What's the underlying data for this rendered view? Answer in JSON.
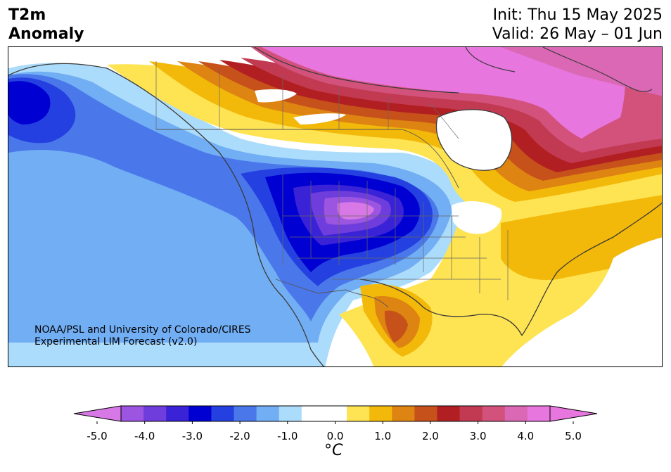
{
  "header": {
    "title_line1": "T2m",
    "title_line2": "Anomaly",
    "init_text": "Init: Thu 15 May 2025",
    "valid_text": "Valid: 26 May – 01 Jun"
  },
  "credit": {
    "line1": "NOAA/PSL and University of Colorado/CIRES",
    "line2": "Experimental LIM Forecast (v2.0)"
  },
  "colorbar": {
    "unit": "°C",
    "tick_labels": [
      "-5.0",
      "-4.0",
      "-3.0",
      "-2.0",
      "-1.0",
      "0.0",
      "1.0",
      "2.0",
      "3.0",
      "4.0",
      "5.0"
    ],
    "levels": [
      -5.0,
      -4.5,
      -4.0,
      -3.5,
      -3.0,
      -2.5,
      -2.0,
      -1.5,
      -1.0,
      -0.5,
      0.5,
      1.0,
      1.5,
      2.0,
      2.5,
      3.0,
      3.5,
      4.0,
      4.5,
      5.0
    ],
    "colors": [
      "#9c55e0",
      "#6e3ddc",
      "#3a22d6",
      "#0000d2",
      "#2540e0",
      "#4a78ea",
      "#72aef4",
      "#acdcfc",
      "#ffffff",
      "#ffffff",
      "#fee352",
      "#f2b90a",
      "#de8412",
      "#c6511a",
      "#b21f22",
      "#c23a52",
      "#d2527c",
      "#da68b4",
      "#e776de"
    ],
    "under_color": "#d878e6",
    "over_color": "#e776de"
  }
}
